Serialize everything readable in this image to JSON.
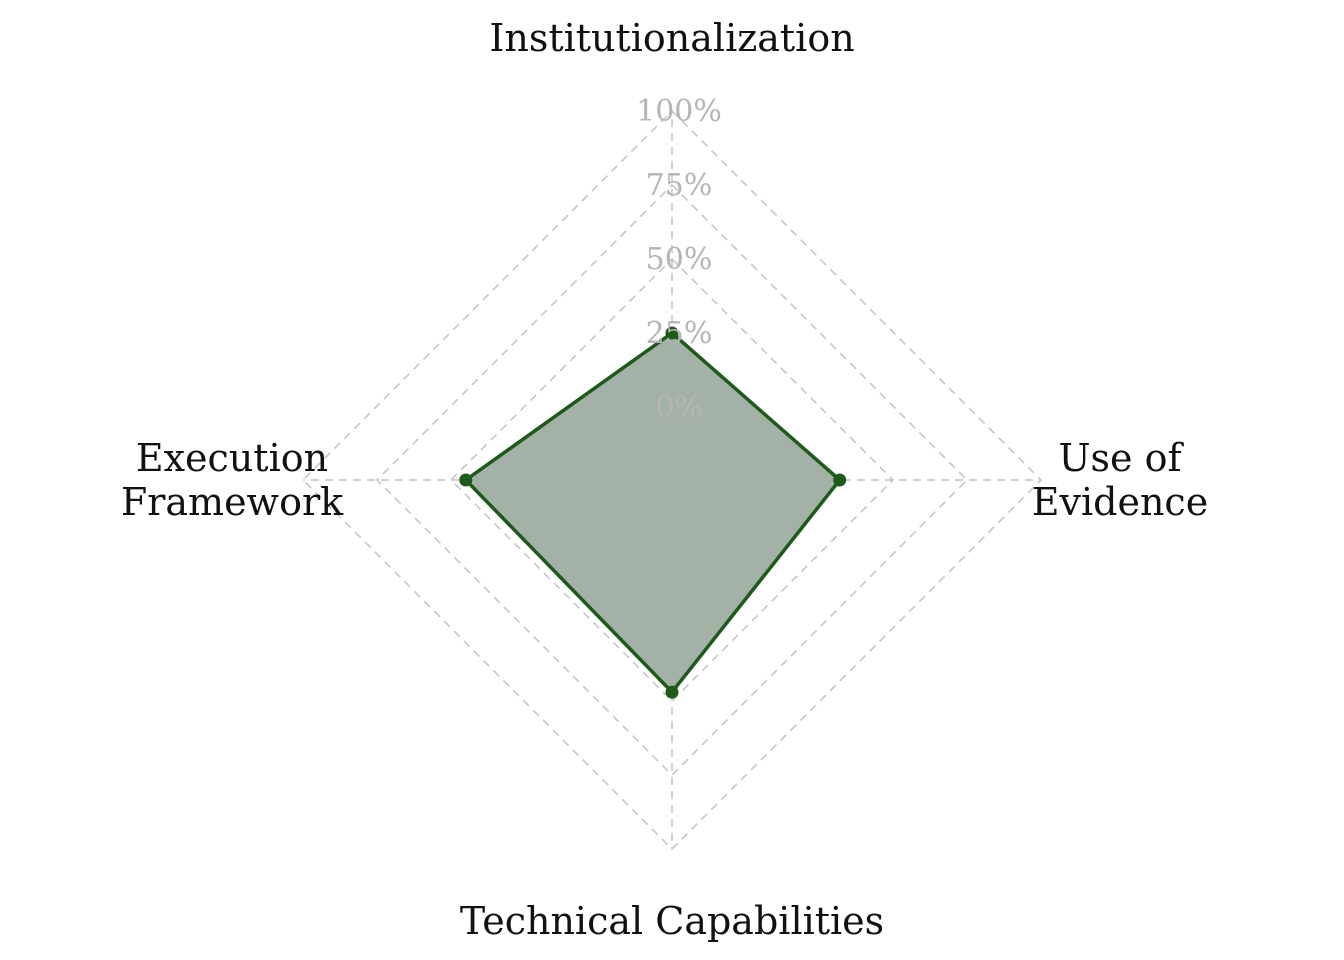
{
  "chart_data": {
    "type": "radar",
    "title": "",
    "axes": [
      {
        "label": "Institutionalization",
        "lines": [
          "Institutionalization"
        ]
      },
      {
        "label": "Use of Evidence",
        "lines": [
          "Use of",
          "Evidence"
        ]
      },
      {
        "label": "Technical Capabilities",
        "lines": [
          "Technical Capabilities"
        ]
      },
      {
        "label": "Execution Framework",
        "lines": [
          "Execution",
          "Framework"
        ]
      }
    ],
    "range": [
      0,
      100
    ],
    "ticks": [
      0,
      25,
      50,
      75,
      100
    ],
    "tick_labels": [
      "0%",
      "25%",
      "50%",
      "75%",
      "100%"
    ],
    "grid": true,
    "series": [
      {
        "values": [
          25,
          32,
          47,
          45
        ],
        "line_color": "#1e5a1a",
        "fill_color": "#a3b1a7",
        "marker_color": "#1e5a1a"
      }
    ]
  }
}
